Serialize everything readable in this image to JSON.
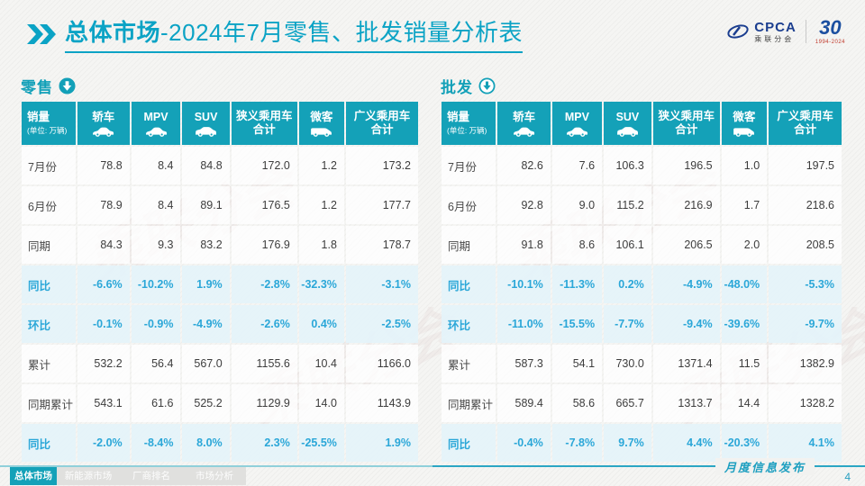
{
  "page": {
    "title_highlight": "总体市场",
    "title_rest": "-2024年7月零售、批发销量分析表",
    "publication_label": "月度信息发布",
    "page_number": "4",
    "watermark": "乘联分会"
  },
  "logos": {
    "cpca_acronym": "CPCA",
    "cpca_name": "乘联分会",
    "anniversary_number": "30",
    "anniversary_years": "1994-2024"
  },
  "table_columns": [
    {
      "label": "销量",
      "sub": "(单位: 万辆)"
    },
    {
      "label": "轿车",
      "icon": "sedan-car-icon"
    },
    {
      "label": "MPV",
      "icon": "mpv-car-icon"
    },
    {
      "label": "SUV",
      "icon": "suv-car-icon"
    },
    {
      "label": "狭义乘用车",
      "label2": "合计"
    },
    {
      "label": "微客",
      "icon": "microvan-icon"
    },
    {
      "label": "广义乘用车",
      "label2": "合计"
    }
  ],
  "column_widths": [
    "14%",
    "13.5%",
    "12.8%",
    "12.2%",
    "17.1%",
    "11.7%",
    "18.7%"
  ],
  "retail": {
    "section_label": "零售",
    "rows": [
      {
        "label": "7月份",
        "type": "normal",
        "values": [
          "78.8",
          "8.4",
          "84.8",
          "172.0",
          "1.2",
          "173.2"
        ]
      },
      {
        "label": "6月份",
        "type": "normal",
        "values": [
          "78.9",
          "8.4",
          "89.1",
          "176.5",
          "1.2",
          "177.7"
        ]
      },
      {
        "label": "同期",
        "type": "normal",
        "values": [
          "84.3",
          "9.3",
          "83.2",
          "176.9",
          "1.8",
          "178.7"
        ]
      },
      {
        "label": "同比",
        "type": "highlight",
        "values": [
          "-6.6%",
          "-10.2%",
          "1.9%",
          "-2.8%",
          "-32.3%",
          "-3.1%"
        ]
      },
      {
        "label": "环比",
        "type": "highlight",
        "values": [
          "-0.1%",
          "-0.9%",
          "-4.9%",
          "-2.6%",
          "0.4%",
          "-2.5%"
        ]
      },
      {
        "label": "累计",
        "type": "normal",
        "values": [
          "532.2",
          "56.4",
          "567.0",
          "1155.6",
          "10.4",
          "1166.0"
        ]
      },
      {
        "label": "同期累计",
        "type": "normal",
        "values": [
          "543.1",
          "61.6",
          "525.2",
          "1129.9",
          "14.0",
          "1143.9"
        ]
      },
      {
        "label": "同比",
        "type": "highlight",
        "values": [
          "-2.0%",
          "-8.4%",
          "8.0%",
          "2.3%",
          "-25.5%",
          "1.9%"
        ]
      }
    ]
  },
  "wholesale": {
    "section_label": "批发",
    "rows": [
      {
        "label": "7月份",
        "type": "normal",
        "values": [
          "82.6",
          "7.6",
          "106.3",
          "196.5",
          "1.0",
          "197.5"
        ]
      },
      {
        "label": "6月份",
        "type": "normal",
        "values": [
          "92.8",
          "9.0",
          "115.2",
          "216.9",
          "1.7",
          "218.6"
        ]
      },
      {
        "label": "同期",
        "type": "normal",
        "values": [
          "91.8",
          "8.6",
          "106.1",
          "206.5",
          "2.0",
          "208.5"
        ]
      },
      {
        "label": "同比",
        "type": "highlight",
        "values": [
          "-10.1%",
          "-11.3%",
          "0.2%",
          "-4.9%",
          "-48.0%",
          "-5.3%"
        ]
      },
      {
        "label": "环比",
        "type": "highlight",
        "values": [
          "-11.0%",
          "-15.5%",
          "-7.7%",
          "-9.4%",
          "-39.6%",
          "-9.7%"
        ]
      },
      {
        "label": "累计",
        "type": "normal",
        "values": [
          "587.3",
          "54.1",
          "730.0",
          "1371.4",
          "11.5",
          "1382.9"
        ]
      },
      {
        "label": "同期累计",
        "type": "normal",
        "values": [
          "589.4",
          "58.6",
          "665.7",
          "1313.7",
          "14.4",
          "1328.2"
        ]
      },
      {
        "label": "同比",
        "type": "highlight",
        "values": [
          "-0.4%",
          "-7.8%",
          "9.7%",
          "4.4%",
          "-20.3%",
          "4.1%"
        ]
      }
    ]
  },
  "footer_tabs": [
    {
      "label": "总体市场",
      "active": true
    },
    {
      "label": "新能源市场",
      "active": false
    },
    {
      "label": "厂商排名",
      "active": false
    },
    {
      "label": "市场分析",
      "active": false
    }
  ],
  "colors": {
    "accent_teal": "#14a1b8",
    "title_teal": "#0ba3c5",
    "highlight_blue": "#2ba7d8",
    "highlight_bg": "#e4f3fa"
  }
}
